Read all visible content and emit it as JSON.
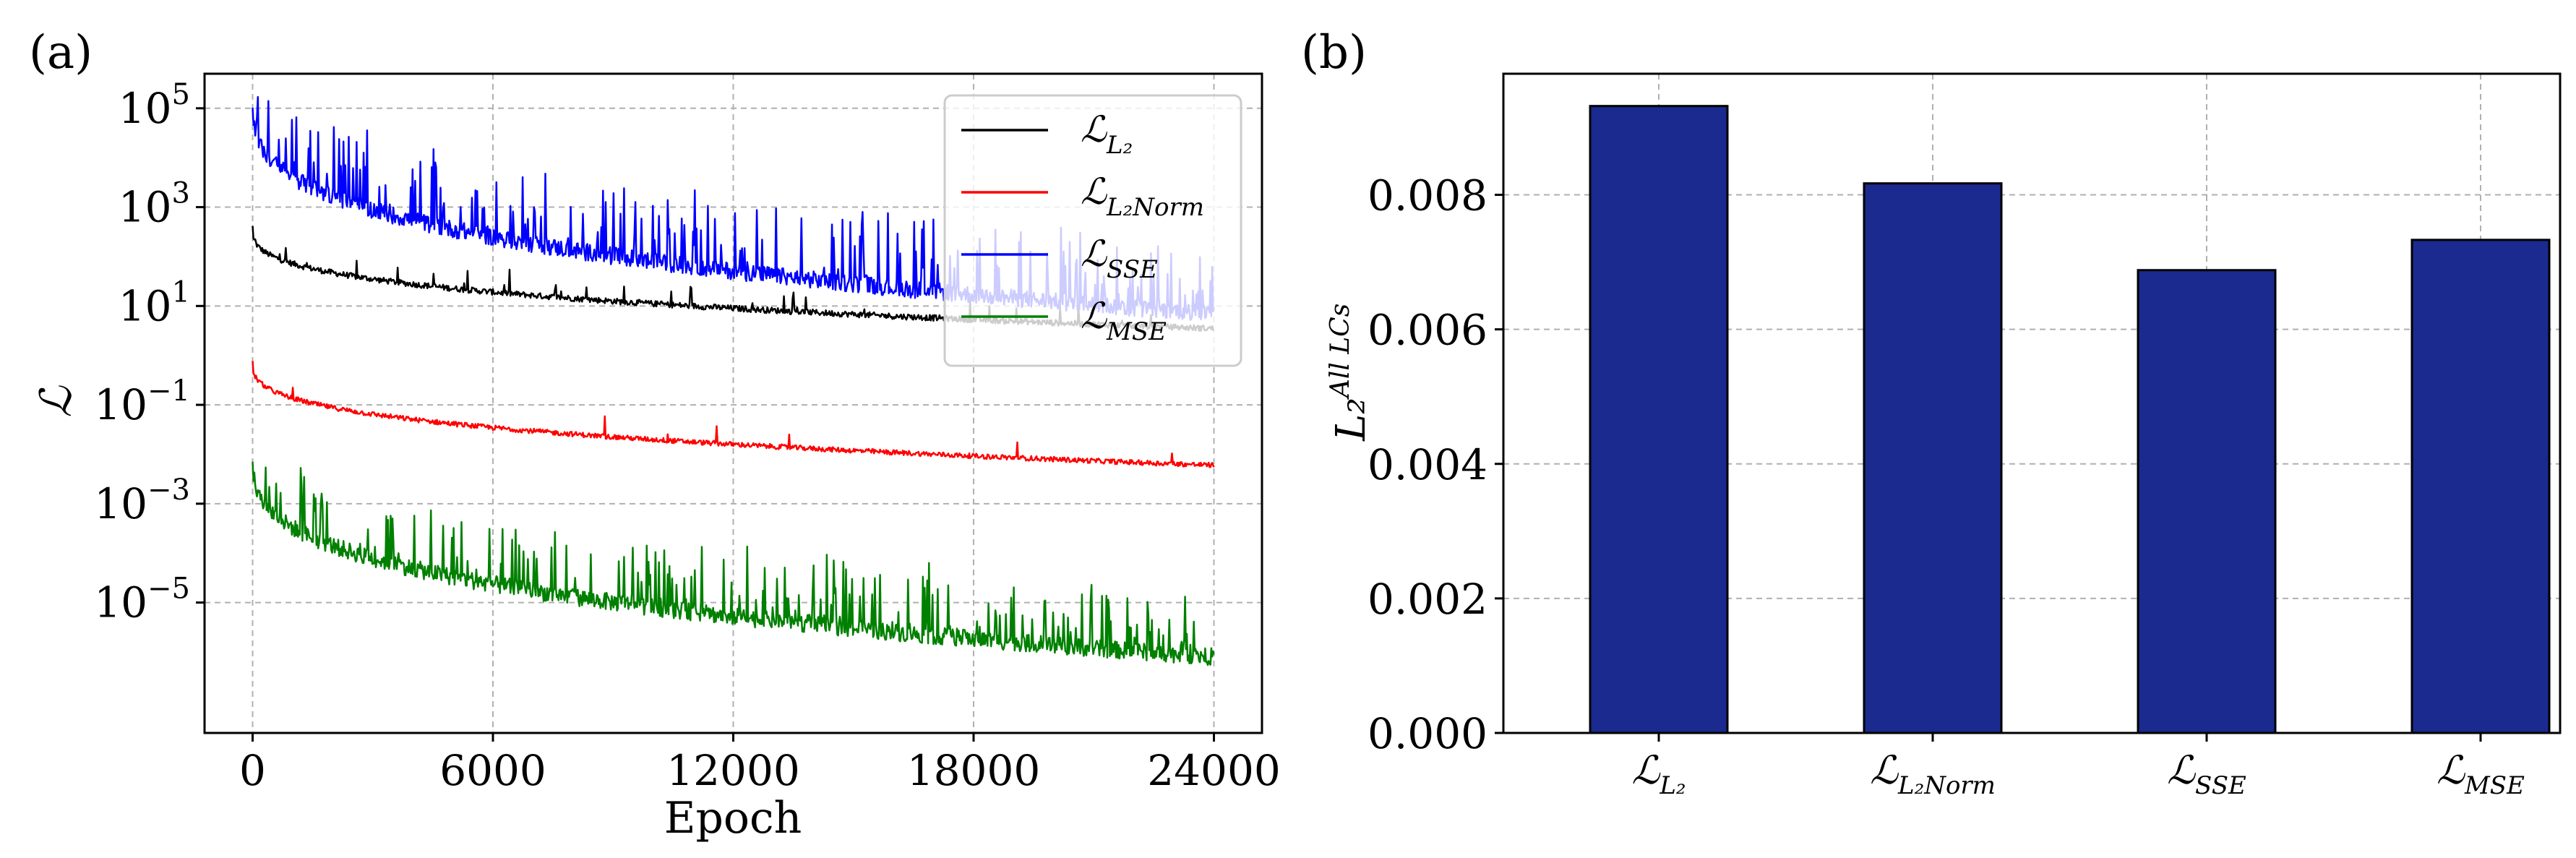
{
  "figure": {
    "panel_a_label": "(a)",
    "panel_b_label": "(b)"
  },
  "colors": {
    "L2": "#000000",
    "L2Norm": "#ff0000",
    "SSE": "#0000ff",
    "MSE": "#008000",
    "bar_fill": "#1a2a8f",
    "bar_edge": "#000000"
  },
  "chart_data": [
    {
      "type": "line",
      "yscale": "log",
      "title": "",
      "xlabel": "Epoch",
      "ylabel": "ℒ",
      "xlim": [
        -1200,
        25200
      ],
      "ylim": [
        2.3e-08,
        500000
      ],
      "xticks": [
        0,
        6000,
        12000,
        18000,
        24000
      ],
      "xtick_labels": [
        "0",
        "6000",
        "12000",
        "18000",
        "24000"
      ],
      "yticks": [
        {
          "value": 100000,
          "base": "10",
          "exp": "5"
        },
        {
          "value": 1000,
          "base": "10",
          "exp": "3"
        },
        {
          "value": 10,
          "base": "10",
          "exp": "1"
        },
        {
          "value": 0.1,
          "base": "10",
          "exp": "−1"
        },
        {
          "value": 0.001,
          "base": "10",
          "exp": "−3"
        },
        {
          "value": 1e-05,
          "base": "10",
          "exp": "−5"
        }
      ],
      "legend_position": "top-right",
      "series": [
        {
          "key": "L2",
          "name": "ℒ",
          "subscript": "L₂",
          "start": 400,
          "end": 3.5,
          "noise_decades": 0.12,
          "spike_prob": 0.04,
          "spike_decades": 0.45
        },
        {
          "key": "L2Norm",
          "name": "ℒ",
          "subscript": "L₂Norm",
          "start": 0.8,
          "end": 0.006,
          "noise_decades": 0.1,
          "spike_prob": 0.006,
          "spike_decades": 0.55
        },
        {
          "key": "SSE",
          "name": "ℒ",
          "subscript": "SSE",
          "start": 150000,
          "end": 7,
          "noise_decades": 0.35,
          "spike_prob": 0.18,
          "spike_decades": 1.4
        },
        {
          "key": "MSE",
          "name": "ℒ",
          "subscript": "MSE",
          "start": 0.01,
          "end": 8e-07,
          "noise_decades": 0.35,
          "spike_prob": 0.18,
          "spike_decades": 1.3
        }
      ]
    },
    {
      "type": "bar",
      "title": "",
      "xlabel": "",
      "ylabel": "L₂",
      "ylabel_superscript": "All LCs",
      "ylim": [
        0,
        0.0098
      ],
      "yticks": [
        0,
        0.002,
        0.004,
        0.006,
        0.008
      ],
      "ytick_labels": [
        "0.000",
        "0.002",
        "0.004",
        "0.006",
        "0.008"
      ],
      "categories": [
        {
          "name": "ℒ",
          "subscript": "L₂"
        },
        {
          "name": "ℒ",
          "subscript": "L₂Norm"
        },
        {
          "name": "ℒ",
          "subscript": "SSE"
        },
        {
          "name": "ℒ",
          "subscript": "MSE"
        }
      ],
      "values": [
        0.00932,
        0.00817,
        0.00688,
        0.00733
      ]
    }
  ]
}
